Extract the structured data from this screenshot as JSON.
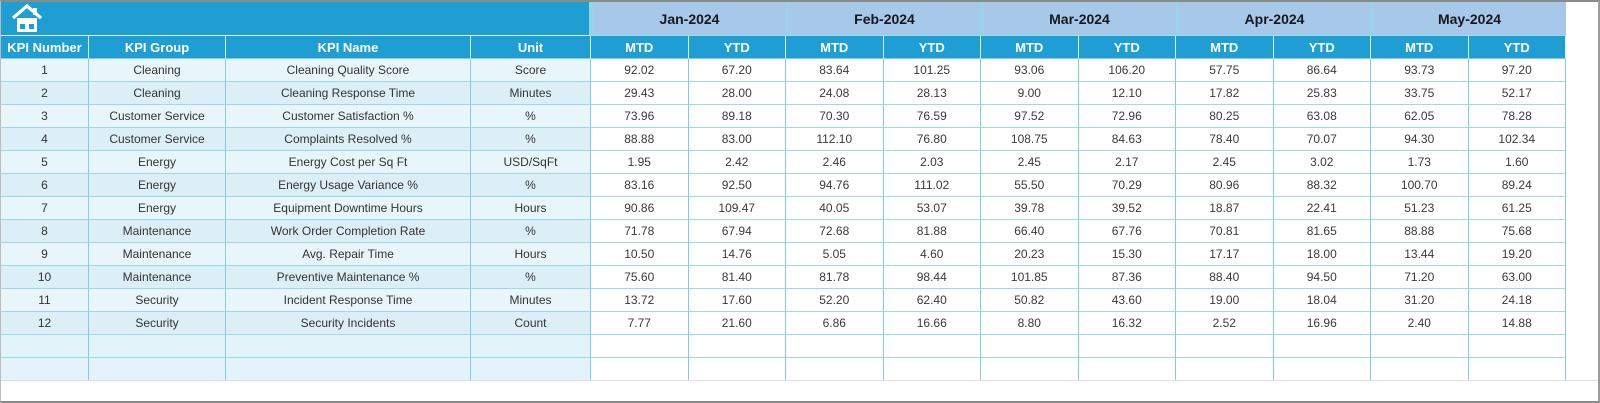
{
  "colors": {
    "header_cyan": "#1e9ed2",
    "month_blue": "#a7c9e9",
    "grid_teal": "#7ecfe0",
    "left_band_light": "#e8f5fa",
    "left_band_dark": "#dceff7",
    "frame_gray": "#8a8a8a"
  },
  "icons": {
    "corner": "home-icon"
  },
  "table": {
    "kpi_headers": [
      "KPI Number",
      "KPI Group",
      "KPI Name",
      "Unit"
    ],
    "months": [
      "Jan-2024",
      "Feb-2024",
      "Mar-2024",
      "Apr-2024",
      "May-2024"
    ],
    "sub_headers": [
      "MTD",
      "YTD"
    ],
    "rows": [
      {
        "number": "1",
        "group": "Cleaning",
        "name": "Cleaning Quality Score",
        "unit": "Score",
        "values": [
          "92.02",
          "67.20",
          "83.64",
          "101.25",
          "93.06",
          "106.20",
          "57.75",
          "86.64",
          "93.73",
          "97.20"
        ]
      },
      {
        "number": "2",
        "group": "Cleaning",
        "name": "Cleaning Response Time",
        "unit": "Minutes",
        "values": [
          "29.43",
          "28.00",
          "24.08",
          "28.13",
          "9.00",
          "12.10",
          "17.82",
          "25.83",
          "33.75",
          "52.17"
        ]
      },
      {
        "number": "3",
        "group": "Customer Service",
        "name": "Customer Satisfaction %",
        "unit": "%",
        "values": [
          "73.96",
          "89.18",
          "70.30",
          "76.59",
          "97.52",
          "72.96",
          "80.25",
          "63.08",
          "62.05",
          "78.28"
        ]
      },
      {
        "number": "4",
        "group": "Customer Service",
        "name": "Complaints Resolved %",
        "unit": "%",
        "values": [
          "88.88",
          "83.00",
          "112.10",
          "76.80",
          "108.75",
          "84.63",
          "78.40",
          "70.07",
          "94.30",
          "102.34"
        ]
      },
      {
        "number": "5",
        "group": "Energy",
        "name": "Energy Cost per Sq Ft",
        "unit": "USD/SqFt",
        "values": [
          "1.95",
          "2.42",
          "2.46",
          "2.03",
          "2.45",
          "2.17",
          "2.45",
          "3.02",
          "1.73",
          "1.60"
        ]
      },
      {
        "number": "6",
        "group": "Energy",
        "name": "Energy Usage Variance %",
        "unit": "%",
        "values": [
          "83.16",
          "92.50",
          "94.76",
          "111.02",
          "55.50",
          "70.29",
          "80.96",
          "88.32",
          "100.70",
          "89.24"
        ]
      },
      {
        "number": "7",
        "group": "Energy",
        "name": "Equipment Downtime Hours",
        "unit": "Hours",
        "values": [
          "90.86",
          "109.47",
          "40.05",
          "53.07",
          "39.78",
          "39.52",
          "18.87",
          "22.41",
          "51.23",
          "61.25"
        ]
      },
      {
        "number": "8",
        "group": "Maintenance",
        "name": "Work Order Completion Rate",
        "unit": "%",
        "values": [
          "71.78",
          "67.94",
          "72.68",
          "81.88",
          "66.40",
          "67.76",
          "70.81",
          "81.65",
          "88.88",
          "75.68"
        ]
      },
      {
        "number": "9",
        "group": "Maintenance",
        "name": "Avg. Repair Time",
        "unit": "Hours",
        "values": [
          "10.50",
          "14.76",
          "5.05",
          "4.60",
          "20.23",
          "15.30",
          "17.17",
          "18.00",
          "13.44",
          "19.20"
        ]
      },
      {
        "number": "10",
        "group": "Maintenance",
        "name": "Preventive Maintenance %",
        "unit": "%",
        "values": [
          "75.60",
          "81.40",
          "81.78",
          "98.44",
          "101.85",
          "87.36",
          "88.40",
          "94.50",
          "71.20",
          "63.00"
        ]
      },
      {
        "number": "11",
        "group": "Security",
        "name": "Incident Response Time",
        "unit": "Minutes",
        "values": [
          "13.72",
          "17.60",
          "52.20",
          "62.40",
          "50.82",
          "43.60",
          "19.00",
          "18.04",
          "31.20",
          "24.18"
        ]
      },
      {
        "number": "12",
        "group": "Security",
        "name": "Security Incidents",
        "unit": "Count",
        "values": [
          "7.77",
          "21.60",
          "6.86",
          "16.66",
          "8.80",
          "16.32",
          "2.52",
          "16.96",
          "2.40",
          "14.88"
        ]
      }
    ],
    "empty_row_count": 2
  }
}
